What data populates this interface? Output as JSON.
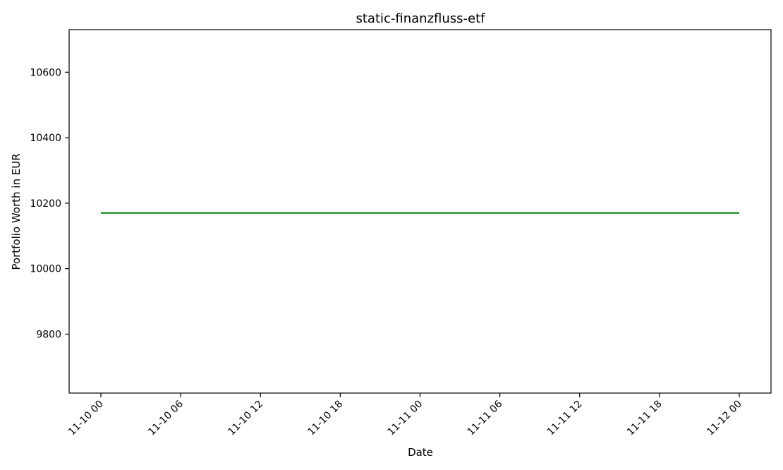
{
  "chart_data": {
    "type": "line",
    "title": "static-finanzfluss-etf",
    "xlabel": "Date",
    "ylabel": "Portfolio Worth in EUR",
    "x_ticks": [
      "11-10 00",
      "11-10 06",
      "11-10 12",
      "11-10 18",
      "11-11 00",
      "11-11 06",
      "11-11 12",
      "11-11 18",
      "11-12 00"
    ],
    "y_ticks": [
      9800,
      10000,
      10200,
      10400,
      10600
    ],
    "xlim": [
      "2023-11-10 00:00",
      "2023-11-12 00:00"
    ],
    "ylim": [
      9620,
      10730
    ],
    "grid": false,
    "series": [
      {
        "color": "#008000",
        "x": [
          "2023-11-10 00:00",
          "2023-11-12 00:00"
        ],
        "y": [
          10170,
          10170
        ]
      }
    ]
  }
}
